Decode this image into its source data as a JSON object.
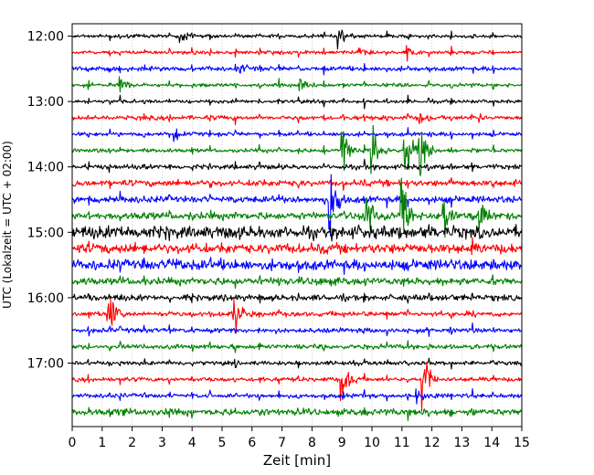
{
  "chart_data": {
    "type": "line",
    "title": "",
    "xlabel": "Zeit  [min]",
    "ylabel": "UTC (Lokalzeit = UTC + 02:00)",
    "xlim": [
      0,
      15
    ],
    "x_ticks": [
      "0",
      "1",
      "2",
      "3",
      "4",
      "5",
      "6",
      "7",
      "8",
      "9",
      "10",
      "11",
      "12",
      "13",
      "14",
      "15"
    ],
    "y_ticks": [
      {
        "label": "12:00",
        "trace_index": 0
      },
      {
        "label": "13:00",
        "trace_index": 4
      },
      {
        "label": "14:00",
        "trace_index": 8
      },
      {
        "label": "15:00",
        "trace_index": 12
      },
      {
        "label": "16:00",
        "trace_index": 16
      },
      {
        "label": "17:00",
        "trace_index": 20
      }
    ],
    "grid": true,
    "trace_interval_min": 15,
    "color_cycle": [
      "#000000",
      "#ff0000",
      "#0000ff",
      "#008000"
    ],
    "trace_count": 24,
    "trace_start_times": [
      "12:00",
      "12:15",
      "12:30",
      "12:45",
      "13:00",
      "13:15",
      "13:30",
      "13:45",
      "14:00",
      "14:15",
      "14:30",
      "14:45",
      "15:00",
      "15:15",
      "15:30",
      "15:45",
      "16:00",
      "16:15",
      "16:30",
      "16:45",
      "17:00",
      "17:15",
      "17:30",
      "17:45"
    ],
    "noise_level": [
      0.9,
      0.9,
      1.1,
      0.9,
      0.9,
      1.1,
      1.0,
      1.0,
      1.2,
      1.6,
      1.7,
      1.9,
      3.2,
      2.6,
      2.6,
      1.9,
      1.5,
      1.3,
      1.2,
      1.2,
      1.1,
      1.1,
      1.1,
      1.7
    ],
    "events": [
      {
        "trace": 0,
        "time_min": 3.6,
        "amplitude": 1.2
      },
      {
        "trace": 0,
        "time_min": 8.9,
        "amplitude": 2.0
      },
      {
        "trace": 1,
        "time_min": 9.6,
        "amplitude": 1.5
      },
      {
        "trace": 1,
        "time_min": 11.2,
        "amplitude": 1.5
      },
      {
        "trace": 2,
        "time_min": 5.6,
        "amplitude": 1.2
      },
      {
        "trace": 3,
        "time_min": 1.6,
        "amplitude": 1.5
      },
      {
        "trace": 3,
        "time_min": 7.6,
        "amplitude": 3.0
      },
      {
        "trace": 5,
        "time_min": 11.6,
        "amplitude": 1.2
      },
      {
        "trace": 5,
        "time_min": 13.6,
        "amplitude": 1.2
      },
      {
        "trace": 6,
        "time_min": 3.4,
        "amplitude": 1.5
      },
      {
        "trace": 7,
        "time_min": 9.0,
        "amplitude": 6.0
      },
      {
        "trace": 7,
        "time_min": 10.0,
        "amplitude": 6.0
      },
      {
        "trace": 7,
        "time_min": 11.1,
        "amplitude": 8.0
      },
      {
        "trace": 7,
        "time_min": 11.6,
        "amplitude": 6.0
      },
      {
        "trace": 10,
        "time_min": 8.6,
        "amplitude": 8.0
      },
      {
        "trace": 11,
        "time_min": 9.8,
        "amplitude": 6.0
      },
      {
        "trace": 11,
        "time_min": 11.0,
        "amplitude": 8.0
      },
      {
        "trace": 11,
        "time_min": 12.4,
        "amplitude": 5.0
      },
      {
        "trace": 11,
        "time_min": 13.6,
        "amplitude": 5.0
      },
      {
        "trace": 14,
        "time_min": 3.4,
        "amplitude": 1.5
      },
      {
        "trace": 17,
        "time_min": 1.2,
        "amplitude": 5.0
      },
      {
        "trace": 17,
        "time_min": 5.4,
        "amplitude": 5.0
      },
      {
        "trace": 21,
        "time_min": 9.0,
        "amplitude": 5.0
      },
      {
        "trace": 21,
        "time_min": 11.7,
        "amplitude": 7.0
      },
      {
        "trace": 22,
        "time_min": 11.5,
        "amplitude": 1.5
      }
    ],
    "spike_times_min": [
      0.55,
      1.25,
      1.6,
      2.4,
      3.25,
      4.0,
      4.6,
      5.45,
      6.25,
      6.9,
      7.55,
      8.4,
      9.05,
      9.75,
      10.5,
      11.2,
      11.9,
      12.65,
      13.35,
      14.05
    ]
  }
}
